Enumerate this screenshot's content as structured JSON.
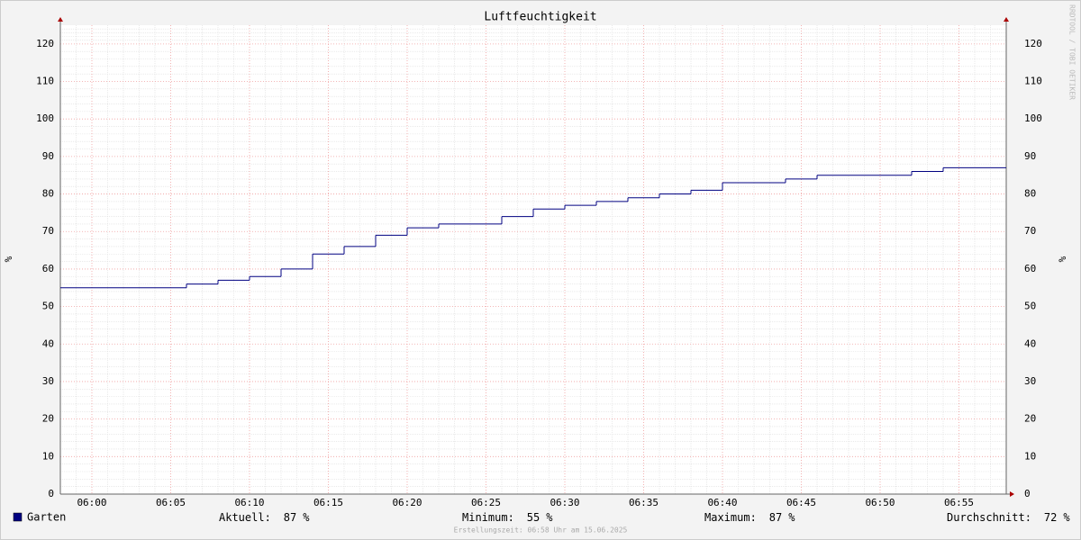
{
  "chart_data": {
    "type": "step",
    "title": "Luftfeuchtigkeit",
    "y_label": "%",
    "watermark": "RRDTOOL / TOBI OETIKER",
    "footer": "Erstellungszeit: 06:58 Uhr am 15.06.2025",
    "xlim": [
      "05:58",
      "06:58"
    ],
    "xticks": [
      "06:00",
      "06:05",
      "06:10",
      "06:15",
      "06:20",
      "06:25",
      "06:30",
      "06:35",
      "06:40",
      "06:45",
      "06:50",
      "06:55"
    ],
    "ylim": [
      0,
      125
    ],
    "yticks": [
      0,
      10,
      20,
      30,
      40,
      50,
      60,
      70,
      80,
      90,
      100,
      110,
      120
    ],
    "grid": true,
    "x": [
      "05:58",
      "06:06",
      "06:08",
      "06:10",
      "06:12",
      "06:14",
      "06:16",
      "06:18",
      "06:20",
      "06:22",
      "06:26",
      "06:28",
      "06:30",
      "06:32",
      "06:34",
      "06:36",
      "06:38",
      "06:40",
      "06:44",
      "06:46",
      "06:52",
      "06:54"
    ],
    "series": [
      {
        "name": "Garten",
        "color": "#000080",
        "values": [
          55,
          56,
          57,
          58,
          60,
          64,
          66,
          69,
          71,
          72,
          74,
          76,
          77,
          78,
          79,
          80,
          81,
          83,
          84,
          85,
          86,
          87
        ]
      }
    ],
    "unit": "%",
    "stats": [
      {
        "label": "Aktuell:",
        "value": 87
      },
      {
        "label": "Minimum:",
        "value": 55
      },
      {
        "label": "Maximum:",
        "value": 87
      },
      {
        "label": "Durchschnitt:",
        "value": 72
      }
    ]
  }
}
